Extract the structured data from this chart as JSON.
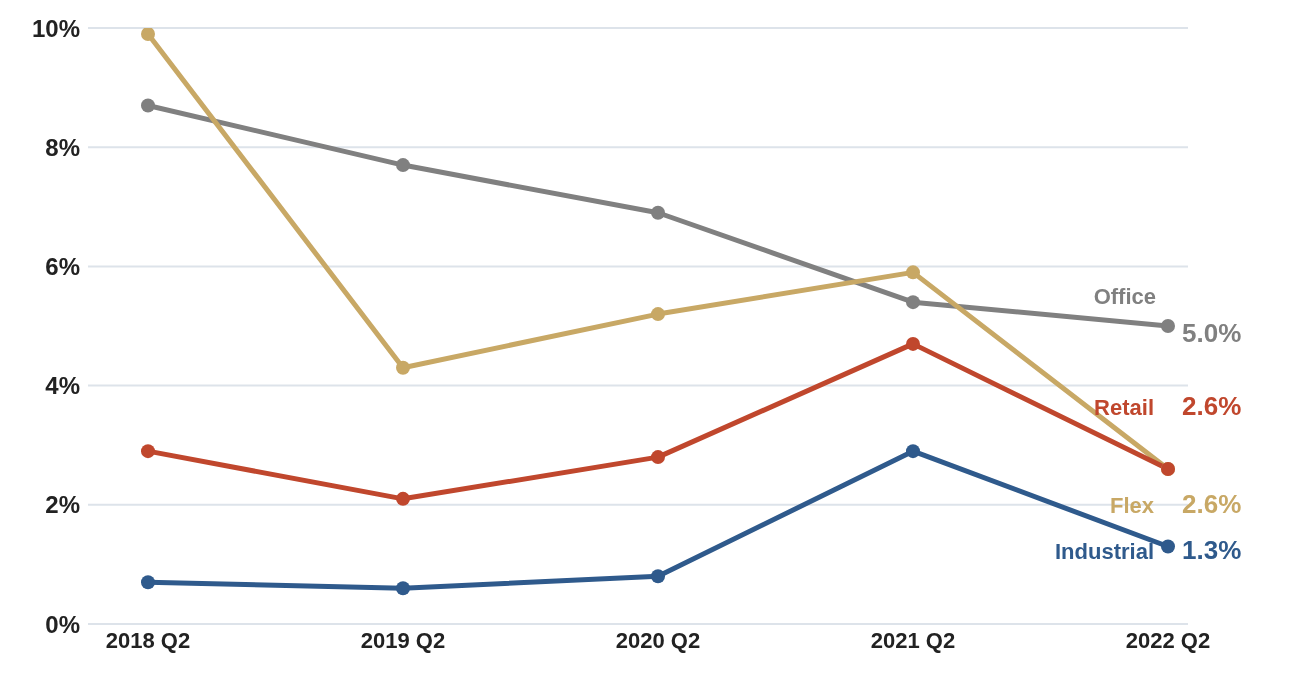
{
  "chart_data": {
    "type": "line",
    "categories": [
      "2018 Q2",
      "2019 Q2",
      "2020 Q2",
      "2021 Q2",
      "2022 Q2"
    ],
    "series": [
      {
        "name": "Office",
        "color": "#808080",
        "values": [
          8.7,
          7.7,
          6.9,
          5.4,
          5.0
        ],
        "value_labels": [
          null,
          null,
          null,
          null,
          "5.0%"
        ]
      },
      {
        "name": "Flex",
        "color": "#c8a865",
        "values": [
          9.9,
          4.3,
          5.2,
          5.9,
          2.6
        ],
        "value_labels": [
          null,
          null,
          null,
          null,
          "2.6%"
        ]
      },
      {
        "name": "Retail",
        "color": "#c0472d",
        "values": [
          2.9,
          2.1,
          2.8,
          4.7,
          2.6
        ],
        "value_labels": [
          null,
          null,
          null,
          null,
          "2.6%"
        ]
      },
      {
        "name": "Industrial",
        "color": "#2f5a8c",
        "values": [
          0.7,
          0.6,
          0.8,
          2.9,
          1.3
        ],
        "value_labels": [
          null,
          null,
          null,
          null,
          "1.3%"
        ]
      }
    ],
    "ylim": [
      0,
      10
    ],
    "yticks": [
      {
        "value": 0,
        "label": "0%"
      },
      {
        "value": 2,
        "label": "2%"
      },
      {
        "value": 4,
        "label": "4%"
      },
      {
        "value": 6,
        "label": "6%"
      },
      {
        "value": 8,
        "label": "8%"
      },
      {
        "value": 10,
        "label": "10%"
      }
    ],
    "grid": "y",
    "marker": "circle",
    "line_style": "solid"
  }
}
